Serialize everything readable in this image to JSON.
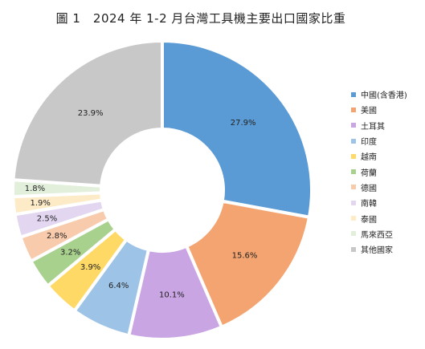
{
  "chart_data": {
    "type": "pie",
    "donut": true,
    "title": "圖 1　2024 年 1-2 月台灣工具機主要出口國家比重",
    "categories": [
      "中國(含香港)",
      "美國",
      "土耳其",
      "印度",
      "越南",
      "荷蘭",
      "德國",
      "南韓",
      "泰國",
      "馬來西亞",
      "其他國家"
    ],
    "values": [
      27.9,
      15.6,
      10.1,
      6.4,
      3.9,
      3.2,
      2.8,
      2.5,
      1.9,
      1.8,
      23.9
    ],
    "data_labels": [
      "27.9%",
      "15.6%",
      "10.1%",
      "6.4%",
      "3.9%",
      "3.2%",
      "2.8%",
      "2.5%",
      "1.9%",
      "1.8%",
      "23.9%"
    ],
    "colors": [
      "#5B9BD5",
      "#F4A470",
      "#C9A6E3",
      "#9DC3E6",
      "#FFD966",
      "#A9D18E",
      "#F8CBAD",
      "#E2D6F0",
      "#FDEBC8",
      "#E2EFDA",
      "#C8C8C8"
    ],
    "legend_position": "right"
  }
}
